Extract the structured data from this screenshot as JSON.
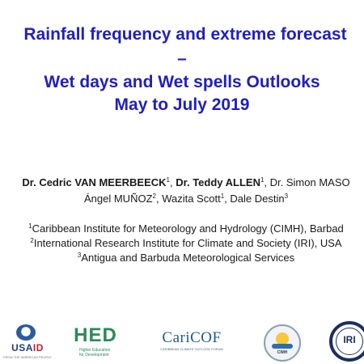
{
  "title": {
    "line1": "Rainfall frequency and extreme forecast",
    "line2": "–",
    "line3": "Wet days and Wet spells Outlooks",
    "line4": "May to July 2019"
  },
  "authors": {
    "a1_name": "Dr. Cedric VAN MEERBEECK",
    "a1_sup": "1",
    "sep1": ", ",
    "a2_name": "Dr. Teddy ALLEN",
    "a2_sup": "1",
    "sep2": ", Dr. Simon MASO",
    "a4_name": "Ángel MUÑOZ",
    "a4_sup": "2",
    "a5_name": ", Wazita Scott",
    "a5_sup": "1",
    "a6_name": ", Dale Destin",
    "a6_sup": "3"
  },
  "affiliations": [
    {
      "sup": "1",
      "text": "Caribbean Institute for Meteorology and Hydrology (CIMH), Barbad"
    },
    {
      "sup": "2",
      "text": "International Research Institute for Climate and Society (IRI), USA"
    },
    {
      "sup": "3",
      "text": "Antigua and Barbuda Meteorological Services"
    }
  ],
  "logos": {
    "usaid": {
      "word_us": "USA",
      "word_id": "ID",
      "tag": "FROM THE AMERICAN PEOPLE"
    },
    "hed": {
      "word": "HED",
      "tag": "Higher Education for Development"
    },
    "caricof": {
      "word": "CariCOF",
      "tag": "CARIBBEAN CLIMATE OUTLOOK FORUM"
    },
    "cimh": {
      "tag": "CIMH"
    },
    "iri": {
      "word": "IRI"
    }
  },
  "colors": {
    "title": "#1f1fbf",
    "text": "#1a1a1a",
    "background": "#ffffff"
  }
}
